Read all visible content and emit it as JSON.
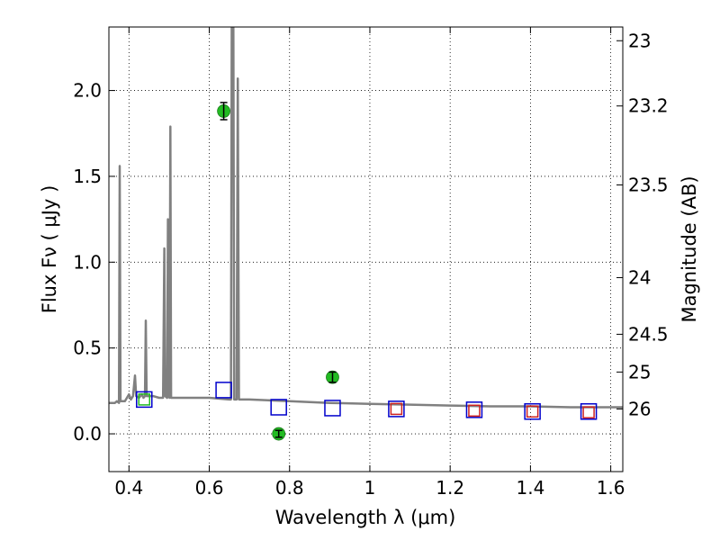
{
  "chart_data": {
    "type": "scatter",
    "title": "",
    "xlabel": "Wavelength  λ (μm)",
    "ylabel": "Flux  Fν  ( μJy )",
    "ylabel_right": "Magnitude (AB)",
    "xlim": [
      0.35,
      1.63
    ],
    "ylim": [
      -0.22,
      2.37
    ],
    "grid": true,
    "x_ticks": [
      0.4,
      0.6,
      0.8,
      1.0,
      1.2,
      1.4,
      1.6
    ],
    "x_tick_labels": [
      "0.4",
      "0.6",
      "0.8",
      "1",
      "1.2",
      "1.4",
      "1.6"
    ],
    "y_ticks": [
      0.0,
      0.5,
      1.0,
      1.5,
      2.0
    ],
    "y_tick_labels": [
      "0.0",
      "0.5",
      "1.0",
      "1.5",
      "2.0"
    ],
    "right_ticks": [
      {
        "label": "23",
        "flux": 2.29
      },
      {
        "label": "23.2",
        "flux": 1.91
      },
      {
        "label": "23.5",
        "flux": 1.45
      },
      {
        "label": "24",
        "flux": 0.91
      },
      {
        "label": "24.5",
        "flux": 0.58
      },
      {
        "label": "25",
        "flux": 0.36
      },
      {
        "label": "26",
        "flux": 0.145
      }
    ],
    "series": [
      {
        "kind": "line",
        "color": "#808080",
        "points": [
          [
            0.35,
            0.18
          ],
          [
            0.365,
            0.18
          ],
          [
            0.37,
            0.19
          ],
          [
            0.375,
            0.18
          ],
          [
            0.377,
            1.56
          ],
          [
            0.379,
            0.19
          ],
          [
            0.39,
            0.19
          ],
          [
            0.4,
            0.23
          ],
          [
            0.405,
            0.2
          ],
          [
            0.41,
            0.22
          ],
          [
            0.415,
            0.34
          ],
          [
            0.418,
            0.22
          ],
          [
            0.425,
            0.21
          ],
          [
            0.432,
            0.23
          ],
          [
            0.436,
            0.21
          ],
          [
            0.44,
            0.22
          ],
          [
            0.442,
            0.66
          ],
          [
            0.444,
            0.22
          ],
          [
            0.46,
            0.22
          ],
          [
            0.475,
            0.21
          ],
          [
            0.485,
            0.21
          ],
          [
            0.488,
            1.08
          ],
          [
            0.49,
            0.22
          ],
          [
            0.495,
            0.21
          ],
          [
            0.497,
            1.25
          ],
          [
            0.499,
            0.22
          ],
          [
            0.501,
            0.21
          ],
          [
            0.503,
            1.79
          ],
          [
            0.505,
            0.21
          ],
          [
            0.55,
            0.21
          ],
          [
            0.6,
            0.21
          ],
          [
            0.65,
            0.2
          ],
          [
            0.654,
            0.2
          ],
          [
            0.656,
            2.37
          ],
          [
            0.66,
            2.37
          ],
          [
            0.662,
            0.2
          ],
          [
            0.668,
            0.2
          ],
          [
            0.671,
            2.07
          ],
          [
            0.674,
            0.2
          ],
          [
            0.7,
            0.2
          ],
          [
            0.8,
            0.19
          ],
          [
            0.9,
            0.18
          ],
          [
            1.0,
            0.175
          ],
          [
            1.1,
            0.17
          ],
          [
            1.2,
            0.165
          ],
          [
            1.3,
            0.16
          ],
          [
            1.4,
            0.16
          ],
          [
            1.5,
            0.155
          ],
          [
            1.63,
            0.155
          ]
        ]
      },
      {
        "kind": "points",
        "marker": "circle",
        "color": "#22bb22",
        "points": [
          [
            0.636,
            1.88
          ],
          [
            0.773,
            0.0
          ],
          [
            0.907,
            0.33
          ]
        ],
        "yerr": [
          0.05,
          0.02,
          0.03
        ]
      },
      {
        "kind": "points",
        "marker": "square",
        "color": "#0000cc",
        "points": [
          [
            0.438,
            0.2
          ],
          [
            0.636,
            0.255
          ],
          [
            0.773,
            0.155
          ],
          [
            0.907,
            0.15
          ],
          [
            1.066,
            0.145
          ],
          [
            1.26,
            0.14
          ],
          [
            1.405,
            0.13
          ],
          [
            1.545,
            0.13
          ]
        ]
      },
      {
        "kind": "points",
        "marker": "square-small",
        "color": "#cc2222",
        "points": [
          [
            1.066,
            0.145
          ],
          [
            1.26,
            0.135
          ],
          [
            1.405,
            0.13
          ],
          [
            1.545,
            0.125
          ]
        ]
      },
      {
        "kind": "points",
        "marker": "square-small",
        "color": "#22bb22",
        "points": [
          [
            0.438,
            0.2
          ]
        ]
      }
    ]
  }
}
